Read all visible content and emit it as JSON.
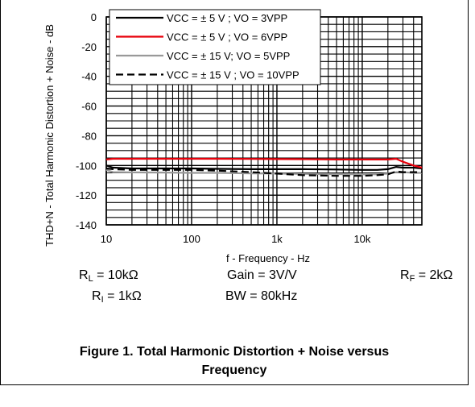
{
  "chart_data": {
    "type": "line",
    "title": "",
    "xlabel": "f - Frequency - Hz",
    "ylabel": "THD+N - Total Harmonic Distortion + Noise - dB",
    "xscale": "log",
    "xlim": [
      10,
      50000
    ],
    "ylim": [
      -140,
      0
    ],
    "xticks": [
      10,
      100,
      1000,
      10000
    ],
    "xtick_labels": [
      "10",
      "100",
      "1k",
      "10k"
    ],
    "yticks": [
      0,
      -20,
      -40,
      -60,
      -80,
      -100,
      -120,
      -140
    ],
    "ytick_labels": [
      "0",
      "-20",
      "-40",
      "-60",
      "-80",
      "-100",
      "-120",
      "-140"
    ],
    "grid": true,
    "legend_position": "top-left",
    "series": [
      {
        "name": "VCC = ± 5 V ; VO = 3VPP",
        "color": "#000000",
        "dash": "solid",
        "x": [
          10,
          12,
          20,
          50,
          100,
          200,
          500,
          1000,
          2000,
          5000,
          10000,
          15000,
          20000,
          25000,
          30000,
          40000,
          50000
        ],
        "y": [
          -100,
          -101.5,
          -102,
          -102,
          -102,
          -102.3,
          -102.5,
          -102.5,
          -102.5,
          -102.7,
          -103,
          -103,
          -102.5,
          -101,
          -101.5,
          -101.5,
          -102
        ]
      },
      {
        "name": "VCC = ± 5 V ; VO = 6VPP",
        "color": "#e8000b",
        "dash": "solid",
        "x": [
          10,
          12,
          20,
          50,
          100,
          200,
          500,
          1000,
          2000,
          5000,
          10000,
          15000,
          20000,
          25000,
          30000,
          40000,
          50000
        ],
        "y": [
          -96,
          -95.5,
          -95.5,
          -95.5,
          -95.5,
          -95.5,
          -95.6,
          -95.7,
          -95.8,
          -96,
          -96,
          -96,
          -96,
          -95.5,
          -97.5,
          -100,
          -101.5
        ]
      },
      {
        "name": "VCC = ± 15 V; VO = 5VPP",
        "color": "#999999",
        "dash": "solid",
        "x": [
          10,
          12,
          20,
          50,
          100,
          200,
          500,
          1000,
          2000,
          5000,
          10000,
          15000,
          20000,
          25000,
          30000,
          40000,
          50000
        ],
        "y": [
          -103,
          -104.5,
          -104.7,
          -104.8,
          -105,
          -105,
          -105.3,
          -105.5,
          -105.7,
          -105.8,
          -106,
          -106,
          -105.5,
          -104.5,
          -104.5,
          -105,
          -105
        ]
      },
      {
        "name": "VCC = ± 15 V ; VO = 10VPP",
        "color": "#000000",
        "dash": "dashed",
        "x": [
          10,
          12,
          20,
          50,
          100,
          200,
          500,
          1000,
          2000,
          5000,
          10000,
          15000,
          20000,
          25000,
          30000,
          40000,
          50000
        ],
        "y": [
          -102,
          -102.5,
          -103,
          -103,
          -103,
          -103.5,
          -104.5,
          -105.5,
          -106.5,
          -107,
          -107,
          -106.5,
          -106,
          -104,
          -104.5,
          -104.5,
          -104.5
        ]
      }
    ]
  },
  "params": {
    "rl_main": "R",
    "rl_sub": "L",
    "rl_val": " = 10kΩ",
    "ri_main": "R",
    "ri_sub": "I",
    "ri_val": " = 1kΩ",
    "gain": "Gain = 3V/V",
    "bw": "BW = 80kHz",
    "rf_main": "R",
    "rf_sub": "F",
    "rf_val": " = 2kΩ"
  },
  "caption": {
    "line1": "Figure 1. Total Harmonic Distortion + Noise versus",
    "line2": "Frequency"
  }
}
